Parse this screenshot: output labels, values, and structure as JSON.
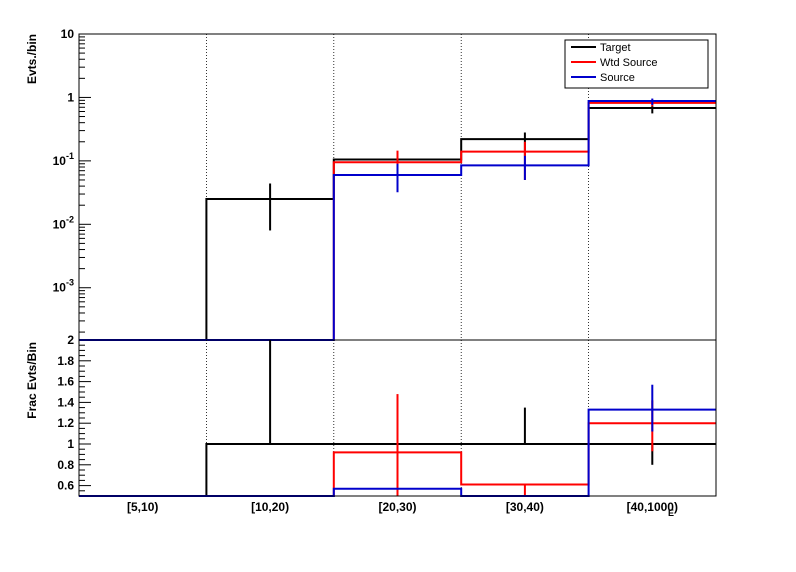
{
  "colors": {
    "target": "#000000",
    "wtd_source": "#ff0000",
    "source": "#0000cc",
    "frame": "#000000",
    "background": "#ffffff"
  },
  "legend": {
    "placement": "top-right",
    "entries": [
      {
        "label": "Target",
        "series": "target"
      },
      {
        "label": "Wtd Source",
        "series": "wtd_source"
      },
      {
        "label": "Source",
        "series": "source"
      }
    ]
  },
  "chart_data": [
    {
      "type": "line",
      "panel": "upper",
      "title": "",
      "xlabel": "",
      "ylabel": "Evts./bin",
      "ylog": true,
      "ylim": [
        0.00015,
        10
      ],
      "categories": [
        "[5,10)",
        "[10,20)",
        "[20,30)",
        "[30,40)",
        "[40,1000)"
      ],
      "y_tick_labels": [
        {
          "value": 0.001,
          "base": "10",
          "exp": "-3"
        },
        {
          "value": 0.01,
          "base": "10",
          "exp": "-2"
        },
        {
          "value": 0.1,
          "base": "10",
          "exp": "-1"
        },
        {
          "value": 1,
          "base": "1",
          "exp": ""
        },
        {
          "value": 10,
          "base": "10",
          "exp": ""
        }
      ],
      "grid_x": true,
      "series": [
        {
          "key": "target",
          "name": "Target",
          "values": [
            0,
            0.025,
            0.105,
            0.22,
            0.68
          ],
          "err_low": [
            0,
            0.017,
            0.03,
            0.1,
            0.12
          ],
          "err_high": [
            0,
            0.019,
            0.035,
            0.06,
            0.06
          ]
        },
        {
          "key": "wtd_source",
          "name": "Wtd Source",
          "values": [
            0,
            0,
            0.095,
            0.14,
            0.82
          ],
          "err_low": [
            0,
            0,
            0.06,
            0.09,
            0.1
          ],
          "err_high": [
            0,
            0,
            0.05,
            0.06,
            0.1
          ]
        },
        {
          "key": "source",
          "name": "Source",
          "values": [
            0,
            0,
            0.06,
            0.085,
            0.88
          ],
          "err_low": [
            0,
            0,
            0.028,
            0.035,
            0.12
          ],
          "err_high": [
            0,
            0,
            0.03,
            0.035,
            0.08
          ]
        }
      ]
    },
    {
      "type": "line",
      "panel": "lower",
      "title": "",
      "ylabel": "Frac Evts/Bin",
      "xlabel": "E",
      "ylim": [
        0.5,
        2
      ],
      "categories": [
        "[5,10)",
        "[10,20)",
        "[20,30)",
        "[30,40)",
        "[40,1000)"
      ],
      "y_tick_labels": [
        "0.6",
        "0.8",
        "1",
        "1.2",
        "1.4",
        "1.6",
        "1.8",
        "2"
      ],
      "y_tick_values": [
        0.6,
        0.8,
        1.0,
        1.2,
        1.4,
        1.6,
        1.8,
        2.0
      ],
      "grid_x": true,
      "series": [
        {
          "key": "target",
          "name": "Target",
          "values": [
            0.5,
            1.0,
            1.0,
            1.0,
            1.0
          ],
          "err_low": [
            0,
            0,
            0,
            0,
            0.2
          ],
          "err_high": [
            0,
            1.0,
            0,
            0.35,
            0
          ]
        },
        {
          "key": "wtd_source",
          "name": "Wtd Source",
          "values": [
            0.5,
            0.5,
            0.92,
            0.61,
            1.2
          ],
          "err_low": [
            0,
            0,
            0.42,
            0.11,
            0.27
          ],
          "err_high": [
            0,
            0,
            0.56,
            0,
            0.22
          ]
        },
        {
          "key": "source",
          "name": "Source",
          "values": [
            0.5,
            0.5,
            0.57,
            0.5,
            1.33
          ],
          "err_low": [
            0,
            0,
            0,
            0,
            0.21
          ],
          "err_high": [
            0,
            0,
            0,
            0,
            0.24
          ]
        }
      ]
    }
  ]
}
